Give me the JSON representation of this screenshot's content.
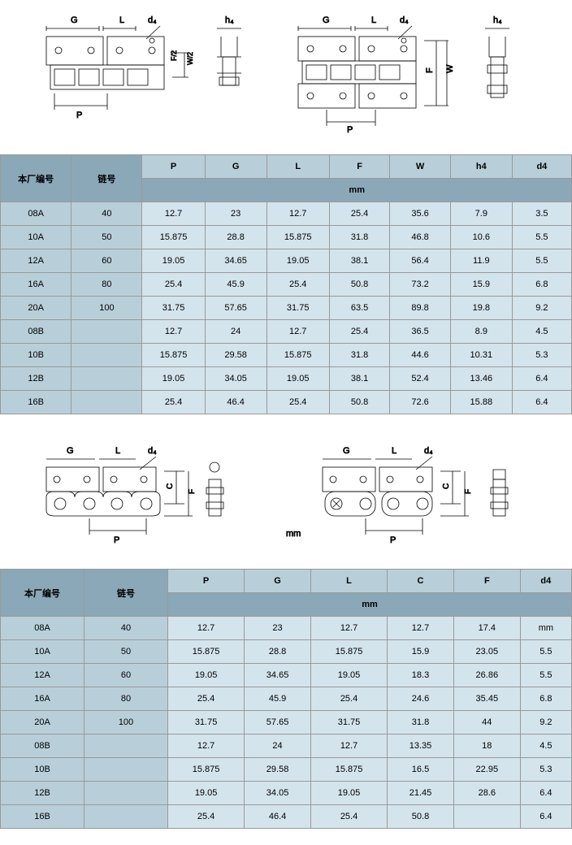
{
  "diagrams": {
    "dims_top_left": [
      "G",
      "L",
      "d₄",
      "h₄"
    ],
    "dims_top_mid": [
      "F/2",
      "W/2"
    ],
    "dims_top_right": [
      "G",
      "L",
      "d₄",
      "h₄",
      "F",
      "W"
    ],
    "dim_P": "P",
    "dims_bot_left": [
      "G",
      "L",
      "d₄",
      "C",
      "F"
    ],
    "dims_bot_right": [
      "G",
      "L",
      "d₄",
      "C",
      "F"
    ],
    "unit": "mm"
  },
  "table1": {
    "col1_header": "本厂编号",
    "col2_header": "链号",
    "cols": [
      "P",
      "G",
      "L",
      "F",
      "W",
      "h4",
      "d4"
    ],
    "unit": "mm",
    "rows": [
      {
        "c1": "08A",
        "c2": "40",
        "d": [
          "12.7",
          "23",
          "12.7",
          "25.4",
          "35.6",
          "7.9",
          "3.5"
        ]
      },
      {
        "c1": "10A",
        "c2": "50",
        "d": [
          "15.875",
          "28.8",
          "15.875",
          "31.8",
          "46.8",
          "10.6",
          "5.5"
        ]
      },
      {
        "c1": "12A",
        "c2": "60",
        "d": [
          "19.05",
          "34.65",
          "19.05",
          "38.1",
          "56.4",
          "11.9",
          "5.5"
        ]
      },
      {
        "c1": "16A",
        "c2": "80",
        "d": [
          "25.4",
          "45.9",
          "25.4",
          "50.8",
          "73.2",
          "15.9",
          "6.8"
        ]
      },
      {
        "c1": "20A",
        "c2": "100",
        "d": [
          "31.75",
          "57.65",
          "31.75",
          "63.5",
          "89.8",
          "19.8",
          "9.2"
        ]
      },
      {
        "c1": "08B",
        "c2": "",
        "d": [
          "12.7",
          "24",
          "12.7",
          "25.4",
          "36.5",
          "8.9",
          "4.5"
        ]
      },
      {
        "c1": "10B",
        "c2": "",
        "d": [
          "15.875",
          "29.58",
          "15.875",
          "31.8",
          "44.6",
          "10.31",
          "5.3"
        ]
      },
      {
        "c1": "12B",
        "c2": "",
        "d": [
          "19.05",
          "34.05",
          "19.05",
          "38.1",
          "52.4",
          "13.46",
          "6.4"
        ]
      },
      {
        "c1": "16B",
        "c2": "",
        "d": [
          "25.4",
          "46.4",
          "25.4",
          "50.8",
          "72.6",
          "15.88",
          "6.4"
        ]
      }
    ]
  },
  "table2": {
    "col1_header": "本厂编号",
    "col2_header": "链号",
    "cols": [
      "P",
      "G",
      "L",
      "C",
      "F",
      "d4"
    ],
    "unit": "mm",
    "rows": [
      {
        "c1": "08A",
        "c2": "40",
        "d": [
          "12.7",
          "23",
          "12.7",
          "12.7",
          "17.4",
          "mm"
        ]
      },
      {
        "c1": "10A",
        "c2": "50",
        "d": [
          "15.875",
          "28.8",
          "15.875",
          "15.9",
          "23.05",
          "5.5"
        ]
      },
      {
        "c1": "12A",
        "c2": "60",
        "d": [
          "19.05",
          "34.65",
          "19.05",
          "18.3",
          "26.86",
          "5.5"
        ]
      },
      {
        "c1": "16A",
        "c2": "80",
        "d": [
          "25.4",
          "45.9",
          "25.4",
          "24.6",
          "35.45",
          "6.8"
        ]
      },
      {
        "c1": "20A",
        "c2": "100",
        "d": [
          "31.75",
          "57.65",
          "31.75",
          "31.8",
          "44",
          "9.2"
        ]
      },
      {
        "c1": "08B",
        "c2": "",
        "d": [
          "12.7",
          "24",
          "12.7",
          "13.35",
          "18",
          "4.5"
        ]
      },
      {
        "c1": "10B",
        "c2": "",
        "d": [
          "15.875",
          "29.58",
          "15.875",
          "16.5",
          "22.95",
          "5.3"
        ]
      },
      {
        "c1": "12B",
        "c2": "",
        "d": [
          "19.05",
          "34.05",
          "19.05",
          "21.45",
          "28.6",
          "6.4"
        ]
      },
      {
        "c1": "16B",
        "c2": "",
        "d": [
          "25.4",
          "46.4",
          "25.4",
          "50.8",
          "",
          "6.4"
        ]
      }
    ]
  }
}
